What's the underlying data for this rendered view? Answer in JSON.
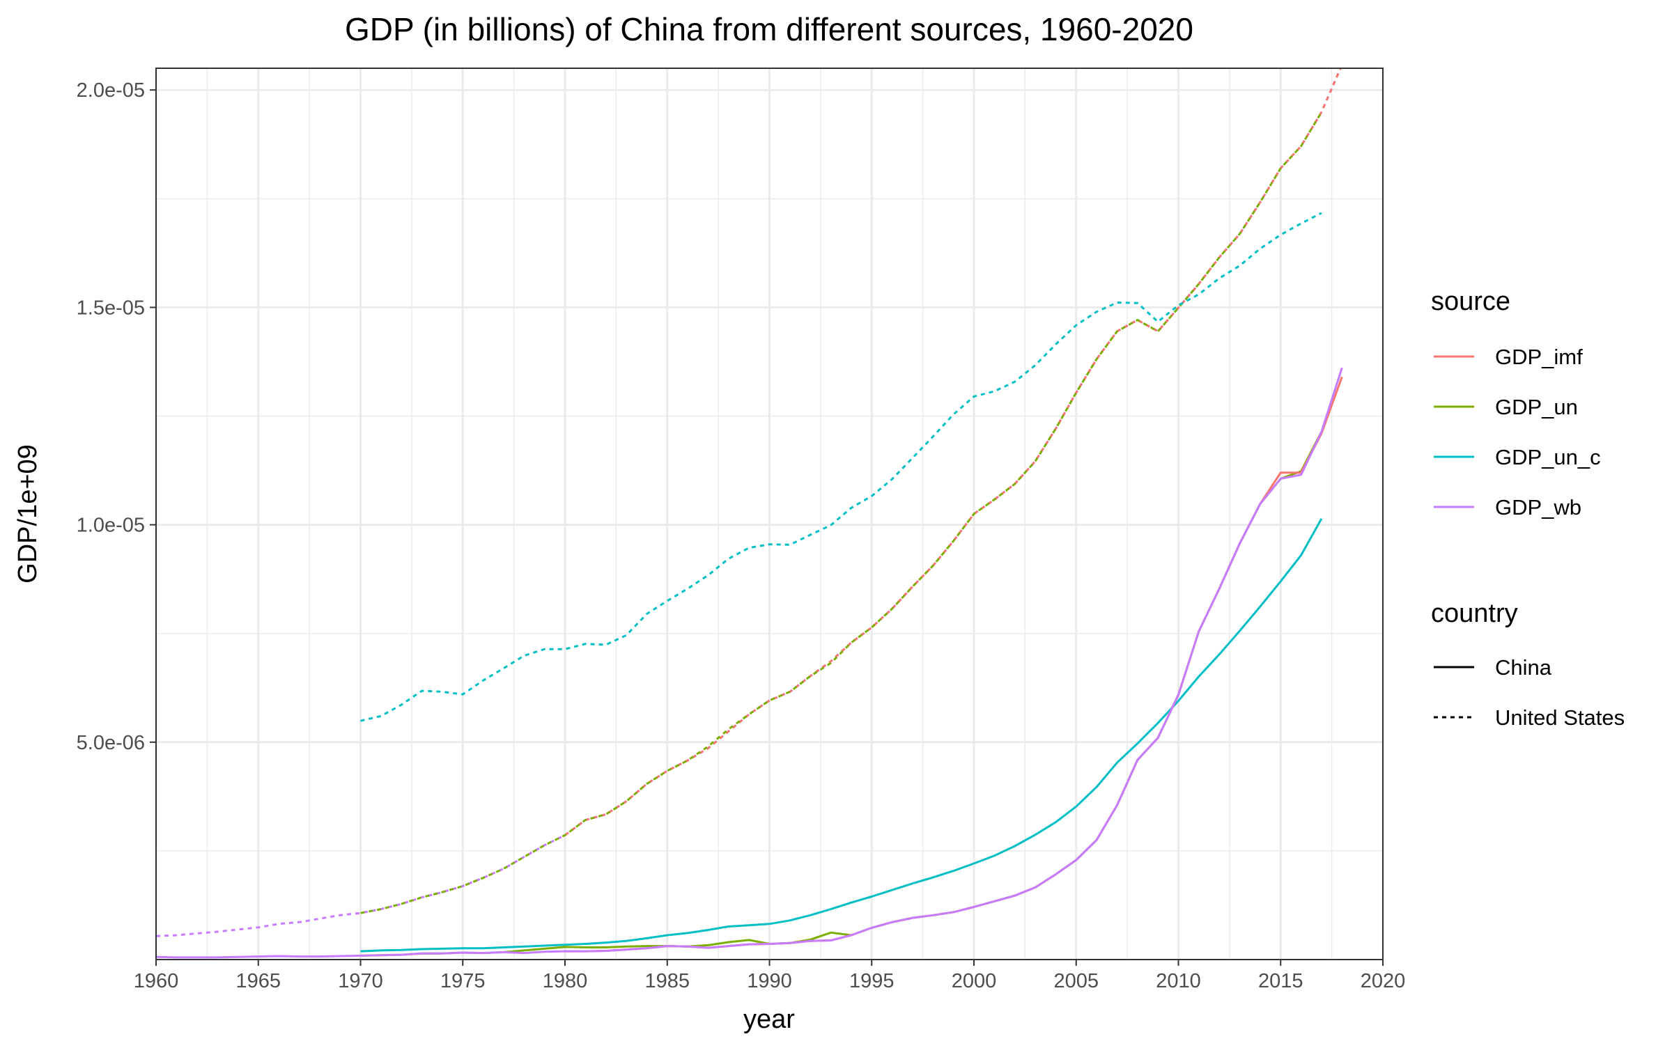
{
  "chart_data": {
    "type": "line",
    "title": "GDP (in billions) of China from different sources, 1960-2020",
    "xlabel": "year",
    "ylabel": "GDP/1e+09",
    "xlim": [
      1960,
      2020
    ],
    "ylim": [
      0,
      2.05e-05
    ],
    "x_ticks": [
      1960,
      1965,
      1970,
      1975,
      1980,
      1985,
      1990,
      1995,
      2000,
      2005,
      2010,
      2015,
      2020
    ],
    "x_tick_labels": [
      "1960",
      "1965",
      "1970",
      "1975",
      "1980",
      "1985",
      "1990",
      "1995",
      "2000",
      "2005",
      "2010",
      "2015",
      "2020"
    ],
    "y_ticks": [
      5e-06,
      1e-05,
      1.5e-05,
      2e-05
    ],
    "y_tick_labels": [
      "5.0e-06",
      "1.0e-05",
      "1.5e-05",
      "2.0e-05"
    ],
    "grid": true,
    "legend_position": "right",
    "legend": {
      "source_title": "source",
      "country_title": "country",
      "sources": [
        {
          "label": "GDP_imf",
          "color": "#F8766D"
        },
        {
          "label": "GDP_un",
          "color": "#7CAE00"
        },
        {
          "label": "GDP_un_c",
          "color": "#00BFC4"
        },
        {
          "label": "GDP_wb",
          "color": "#C77CFF"
        }
      ],
      "countries": [
        {
          "label": "China",
          "linetype": "solid"
        },
        {
          "label": "United States",
          "linetype": "dashed"
        }
      ]
    },
    "series": [
      {
        "source": "GDP_wb",
        "country": "United States",
        "color": "#C77CFF",
        "linetype": "dashed",
        "x": [
          1960,
          1961,
          1962,
          1963,
          1964,
          1965,
          1966,
          1967,
          1968,
          1969,
          1970,
          1971,
          1972,
          1973,
          1974,
          1975,
          1976,
          1977,
          1978,
          1979,
          1980,
          1981,
          1982,
          1983,
          1984,
          1985,
          1986,
          1987,
          1988,
          1989,
          1990,
          1991,
          1992,
          1993,
          1994,
          1995,
          1996,
          1997,
          1998,
          1999,
          2000,
          2001,
          2002,
          2003,
          2004,
          2005,
          2006,
          2007,
          2008,
          2009,
          2010,
          2011,
          2012,
          2013,
          2014,
          2015,
          2016,
          2017,
          2018
        ],
        "y": [
          5.4e-07,
          5.6e-07,
          6e-07,
          6.4e-07,
          6.9e-07,
          7.4e-07,
          8.2e-07,
          8.6e-07,
          9.4e-07,
          1.02e-06,
          1.07e-06,
          1.16e-06,
          1.28e-06,
          1.43e-06,
          1.55e-06,
          1.69e-06,
          1.88e-06,
          2.09e-06,
          2.36e-06,
          2.63e-06,
          2.86e-06,
          3.21e-06,
          3.34e-06,
          3.64e-06,
          4.04e-06,
          4.34e-06,
          4.58e-06,
          4.86e-06,
          5.25e-06,
          5.64e-06,
          5.96e-06,
          6.16e-06,
          6.52e-06,
          6.86e-06,
          7.29e-06,
          7.64e-06,
          8.07e-06,
          8.58e-06,
          9.06e-06,
          9.63e-06,
          1.025e-05,
          1.058e-05,
          1.094e-05,
          1.146e-05,
          1.221e-05,
          1.304e-05,
          1.381e-05,
          1.445e-05,
          1.471e-05,
          1.445e-05,
          1.499e-05,
          1.554e-05,
          1.615e-05,
          1.669e-05,
          1.742e-05,
          1.82e-05,
          1.871e-05,
          1.949e-05,
          2.058e-05
        ]
      },
      {
        "source": "GDP_imf",
        "country": "United States",
        "color": "#F8766D",
        "linetype": "dashed",
        "x": [
          1980,
          1981,
          1982,
          1983,
          1984,
          1985,
          1986,
          1987,
          1988,
          1989,
          1990,
          1991,
          1992,
          1993,
          1994,
          1995,
          1996,
          1997,
          1998,
          1999,
          2000,
          2001,
          2002,
          2003,
          2004,
          2005,
          2006,
          2007,
          2008,
          2009,
          2010,
          2011,
          2012,
          2013,
          2014,
          2015,
          2016,
          2017,
          2018
        ],
        "y": [
          2.86e-06,
          3.21e-06,
          3.34e-06,
          3.64e-06,
          4.04e-06,
          4.34e-06,
          4.58e-06,
          4.86e-06,
          5.25e-06,
          5.64e-06,
          5.96e-06,
          6.16e-06,
          6.52e-06,
          6.86e-06,
          7.29e-06,
          7.64e-06,
          8.07e-06,
          8.58e-06,
          9.06e-06,
          9.63e-06,
          1.025e-05,
          1.058e-05,
          1.094e-05,
          1.146e-05,
          1.221e-05,
          1.304e-05,
          1.381e-05,
          1.445e-05,
          1.471e-05,
          1.445e-05,
          1.499e-05,
          1.554e-05,
          1.615e-05,
          1.669e-05,
          1.742e-05,
          1.82e-05,
          1.871e-05,
          1.949e-05,
          2.058e-05
        ]
      },
      {
        "source": "GDP_un",
        "country": "United States",
        "color": "#7CAE00",
        "linetype": "dashed",
        "x": [
          1970,
          1971,
          1972,
          1973,
          1974,
          1975,
          1976,
          1977,
          1978,
          1979,
          1980,
          1981,
          1982,
          1983,
          1984,
          1985,
          1986,
          1987,
          1988,
          1989,
          1990,
          1991,
          1992,
          1993,
          1994,
          1995,
          1996,
          1997,
          1998,
          1999,
          2000,
          2001,
          2002,
          2003,
          2004,
          2005,
          2006,
          2007,
          2008,
          2009,
          2010,
          2011,
          2012,
          2013,
          2014,
          2015,
          2016,
          2017
        ],
        "y": [
          1.07e-06,
          1.16e-06,
          1.28e-06,
          1.43e-06,
          1.55e-06,
          1.69e-06,
          1.88e-06,
          2.09e-06,
          2.36e-06,
          2.63e-06,
          2.86e-06,
          3.21e-06,
          3.34e-06,
          3.64e-06,
          4.04e-06,
          4.34e-06,
          4.58e-06,
          4.9e-06,
          5.3e-06,
          5.64e-06,
          5.96e-06,
          6.16e-06,
          6.52e-06,
          6.82e-06,
          7.29e-06,
          7.64e-06,
          8.07e-06,
          8.58e-06,
          9.06e-06,
          9.63e-06,
          1.025e-05,
          1.058e-05,
          1.094e-05,
          1.146e-05,
          1.221e-05,
          1.304e-05,
          1.381e-05,
          1.445e-05,
          1.471e-05,
          1.445e-05,
          1.499e-05,
          1.554e-05,
          1.615e-05,
          1.669e-05,
          1.742e-05,
          1.82e-05,
          1.871e-05,
          1.949e-05
        ]
      },
      {
        "source": "GDP_un_c",
        "country": "United States",
        "color": "#00BFC4",
        "linetype": "dashed",
        "x": [
          1970,
          1971,
          1972,
          1973,
          1974,
          1975,
          1976,
          1977,
          1978,
          1979,
          1980,
          1981,
          1982,
          1983,
          1984,
          1985,
          1986,
          1987,
          1988,
          1989,
          1990,
          1991,
          1992,
          1993,
          1994,
          1995,
          1996,
          1997,
          1998,
          1999,
          2000,
          2001,
          2002,
          2003,
          2004,
          2005,
          2006,
          2007,
          2008,
          2009,
          2010,
          2011,
          2012,
          2013,
          2014,
          2015,
          2016,
          2017
        ],
        "y": [
          5.49e-06,
          5.6e-06,
          5.86e-06,
          6.18e-06,
          6.16e-06,
          6.1e-06,
          6.42e-06,
          6.7e-06,
          6.99e-06,
          7.14e-06,
          7.14e-06,
          7.26e-06,
          7.24e-06,
          7.46e-06,
          7.95e-06,
          8.25e-06,
          8.53e-06,
          8.84e-06,
          9.22e-06,
          9.47e-06,
          9.55e-06,
          9.54e-06,
          9.77e-06,
          9.99e-06,
          1.039e-05,
          1.066e-05,
          1.105e-05,
          1.154e-05,
          1.203e-05,
          1.254e-05,
          1.295e-05,
          1.307e-05,
          1.329e-05,
          1.367e-05,
          1.415e-05,
          1.459e-05,
          1.49e-05,
          1.511e-05,
          1.51e-05,
          1.467e-05,
          1.505e-05,
          1.53e-05,
          1.567e-05,
          1.596e-05,
          1.635e-05,
          1.667e-05,
          1.693e-05,
          1.717e-05
        ]
      },
      {
        "source": "GDP_un_c",
        "country": "China",
        "color": "#00BFC4",
        "linetype": "solid",
        "x": [
          1970,
          1971,
          1972,
          1973,
          1974,
          1975,
          1976,
          1977,
          1978,
          1979,
          1980,
          1981,
          1982,
          1983,
          1984,
          1985,
          1986,
          1987,
          1988,
          1989,
          1990,
          1991,
          1992,
          1993,
          1994,
          1995,
          1996,
          1997,
          1998,
          1999,
          2000,
          2001,
          2002,
          2003,
          2004,
          2005,
          2006,
          2007,
          2008,
          2009,
          2010,
          2011,
          2012,
          2013,
          2014,
          2015,
          2016,
          2017
        ],
        "y": [
          1.9e-07,
          2.1e-07,
          2.2e-07,
          2.4e-07,
          2.5e-07,
          2.6e-07,
          2.6e-07,
          2.8e-07,
          3e-07,
          3.2e-07,
          3.4e-07,
          3.6e-07,
          3.9e-07,
          4.3e-07,
          4.9e-07,
          5.6e-07,
          6.1e-07,
          6.8e-07,
          7.6e-07,
          7.9e-07,
          8.2e-07,
          9e-07,
          1.02e-06,
          1.16e-06,
          1.31e-06,
          1.45e-06,
          1.6e-06,
          1.75e-06,
          1.89e-06,
          2.04e-06,
          2.21e-06,
          2.39e-06,
          2.61e-06,
          2.87e-06,
          3.16e-06,
          3.52e-06,
          3.97e-06,
          4.53e-06,
          4.97e-06,
          5.44e-06,
          5.95e-06,
          6.51e-06,
          7.02e-06,
          7.56e-06,
          8.12e-06,
          8.7e-06,
          9.3e-06,
          1.014e-05
        ]
      },
      {
        "source": "GDP_un",
        "country": "China",
        "color": "#7CAE00",
        "linetype": "solid",
        "x": [
          1970,
          1971,
          1972,
          1973,
          1974,
          1975,
          1976,
          1977,
          1978,
          1979,
          1980,
          1981,
          1982,
          1983,
          1984,
          1985,
          1986,
          1987,
          1988,
          1989,
          1990,
          1991,
          1992,
          1993,
          1994,
          1995,
          1996,
          1997,
          1998,
          1999,
          2000,
          2001,
          2002,
          2003,
          2004,
          2005,
          2006,
          2007,
          2008,
          2009,
          2010,
          2011,
          2012,
          2013,
          2014,
          2015,
          2016,
          2017
        ],
        "y": [
          9e-08,
          1e-07,
          1.1e-07,
          1.4e-07,
          1.4e-07,
          1.6e-07,
          1.5e-07,
          1.7e-07,
          2.1e-07,
          2.5e-07,
          2.9e-07,
          2.8e-07,
          2.8e-07,
          3e-07,
          3.1e-07,
          3.1e-07,
          3e-07,
          3.3e-07,
          4e-07,
          4.5e-07,
          3.6e-07,
          3.8e-07,
          4.6e-07,
          6.2e-07,
          5.6e-07,
          7.3e-07,
          8.6e-07,
          9.6e-07,
          1.02e-06,
          1.09e-06,
          1.21e-06,
          1.34e-06,
          1.47e-06,
          1.66e-06,
          1.96e-06,
          2.29e-06,
          2.75e-06,
          3.55e-06,
          4.59e-06,
          5.1e-06,
          6.09e-06,
          7.55e-06,
          8.53e-06,
          9.57e-06,
          1.048e-05,
          1.106e-05,
          1.123e-05,
          1.214e-05
        ]
      },
      {
        "source": "GDP_imf",
        "country": "China",
        "color": "#F8766D",
        "linetype": "solid",
        "x": [
          1980,
          1981,
          1982,
          1983,
          1984,
          1985,
          1986,
          1987,
          1988,
          1989,
          1990,
          1991,
          1992,
          1993,
          1994,
          1995,
          1996,
          1997,
          1998,
          1999,
          2000,
          2001,
          2002,
          2003,
          2004,
          2005,
          2006,
          2007,
          2008,
          2009,
          2010,
          2011,
          2012,
          2013,
          2014,
          2015,
          2016,
          2017,
          2018
        ],
        "y": [
          1.9e-07,
          1.9e-07,
          2e-07,
          2.3e-07,
          2.6e-07,
          3.1e-07,
          3e-07,
          2.7e-07,
          3.1e-07,
          3.5e-07,
          3.6e-07,
          3.8e-07,
          4.3e-07,
          4.4e-07,
          5.6e-07,
          7.3e-07,
          8.6e-07,
          9.6e-07,
          1.02e-06,
          1.09e-06,
          1.21e-06,
          1.34e-06,
          1.47e-06,
          1.66e-06,
          1.96e-06,
          2.29e-06,
          2.75e-06,
          3.55e-06,
          4.59e-06,
          5.1e-06,
          6.09e-06,
          7.55e-06,
          8.53e-06,
          9.57e-06,
          1.048e-05,
          1.12e-05,
          1.12e-05,
          1.21e-05,
          1.34e-05
        ]
      },
      {
        "source": "GDP_wb",
        "country": "China",
        "color": "#C77CFF",
        "linetype": "solid",
        "x": [
          1960,
          1961,
          1962,
          1963,
          1964,
          1965,
          1966,
          1967,
          1968,
          1969,
          1970,
          1971,
          1972,
          1973,
          1974,
          1975,
          1976,
          1977,
          1978,
          1979,
          1980,
          1981,
          1982,
          1983,
          1984,
          1985,
          1986,
          1987,
          1988,
          1989,
          1990,
          1991,
          1992,
          1993,
          1994,
          1995,
          1996,
          1997,
          1998,
          1999,
          2000,
          2001,
          2002,
          2003,
          2004,
          2005,
          2006,
          2007,
          2008,
          2009,
          2010,
          2011,
          2012,
          2013,
          2014,
          2015,
          2016,
          2017,
          2018
        ],
        "y": [
          6e-08,
          5e-08,
          5e-08,
          5e-08,
          6e-08,
          7e-08,
          8e-08,
          7e-08,
          7e-08,
          8e-08,
          9e-08,
          1e-07,
          1.1e-07,
          1.4e-07,
          1.4e-07,
          1.6e-07,
          1.5e-07,
          1.7e-07,
          1.5e-07,
          1.8e-07,
          1.9e-07,
          1.9e-07,
          2e-07,
          2.3e-07,
          2.6e-07,
          3.1e-07,
          3e-07,
          2.7e-07,
          3.1e-07,
          3.5e-07,
          3.6e-07,
          3.8e-07,
          4.3e-07,
          4.4e-07,
          5.6e-07,
          7.3e-07,
          8.6e-07,
          9.6e-07,
          1.02e-06,
          1.09e-06,
          1.21e-06,
          1.34e-06,
          1.47e-06,
          1.66e-06,
          1.96e-06,
          2.29e-06,
          2.75e-06,
          3.55e-06,
          4.59e-06,
          5.1e-06,
          6.09e-06,
          7.55e-06,
          8.53e-06,
          9.57e-06,
          1.048e-05,
          1.106e-05,
          1.115e-05,
          1.214e-05,
          1.361e-05
        ]
      }
    ]
  }
}
